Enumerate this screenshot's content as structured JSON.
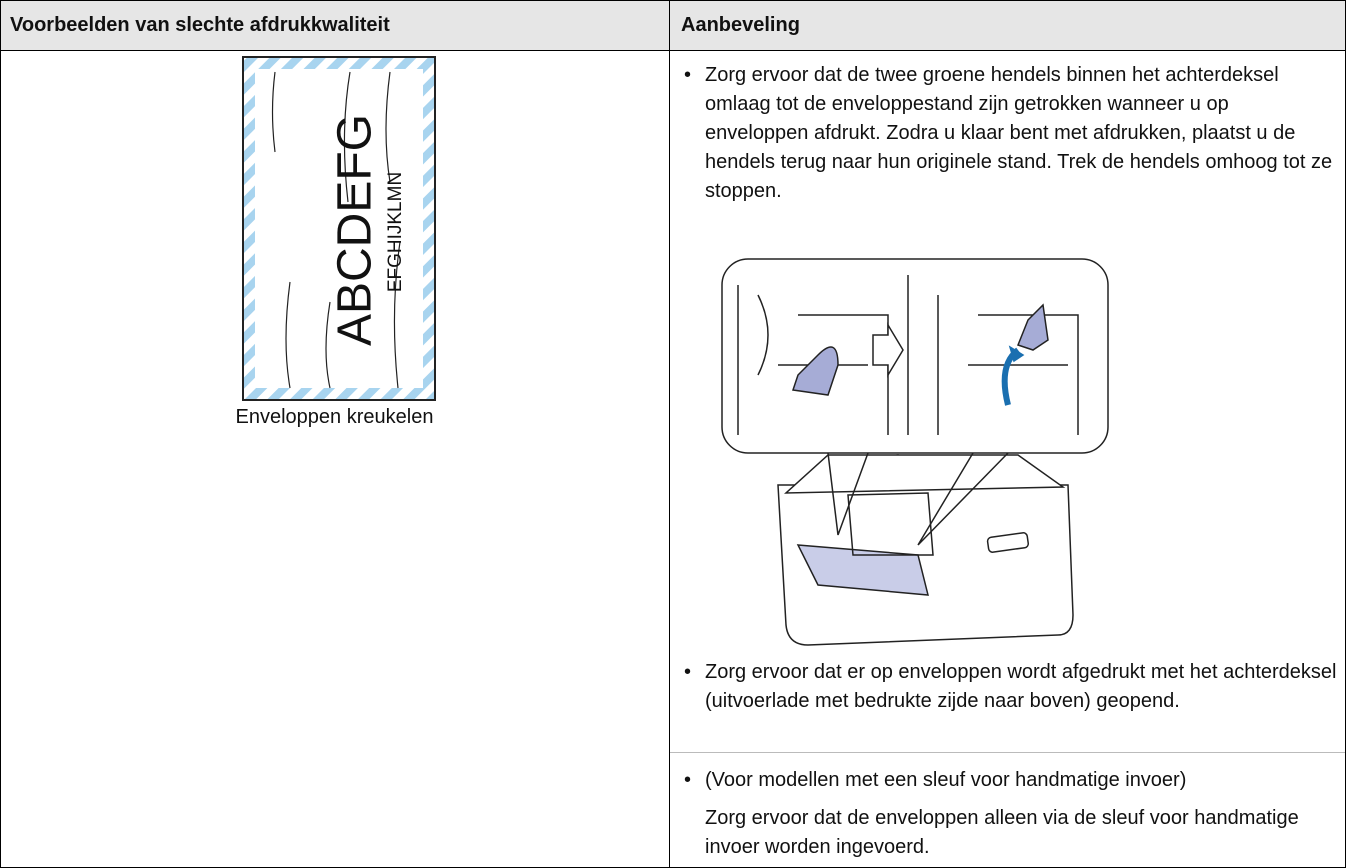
{
  "table": {
    "headers": [
      "Voorbeelden van slechte afdrukkwaliteit",
      "Aanbeveling"
    ],
    "example": {
      "image_text": [
        "ABCDEFG",
        "EFGHIJKLMN"
      ],
      "caption": "Enveloppen kreukelen"
    },
    "recommendations": [
      "Zorg ervoor dat de twee groene hendels binnen het achterdeksel omlaag tot de enveloppestand zijn getrokken wanneer u op enveloppen afdrukt. Zodra u klaar bent met afdrukken, plaatst u de hendels terug naar hun originele stand. Trek de hendels omhoog tot ze stoppen.",
      "Zorg ervoor dat er op enveloppen wordt afgedrukt met het achterdeksel (uitvoerlade met bedrukte zijde naar boven) geopend.",
      "(Voor modellen met een sleuf voor handmatige invoer)"
    ],
    "note": "Zorg ervoor dat de enveloppen alleen via de sleuf voor handmatige invoer worden ingevoerd."
  }
}
